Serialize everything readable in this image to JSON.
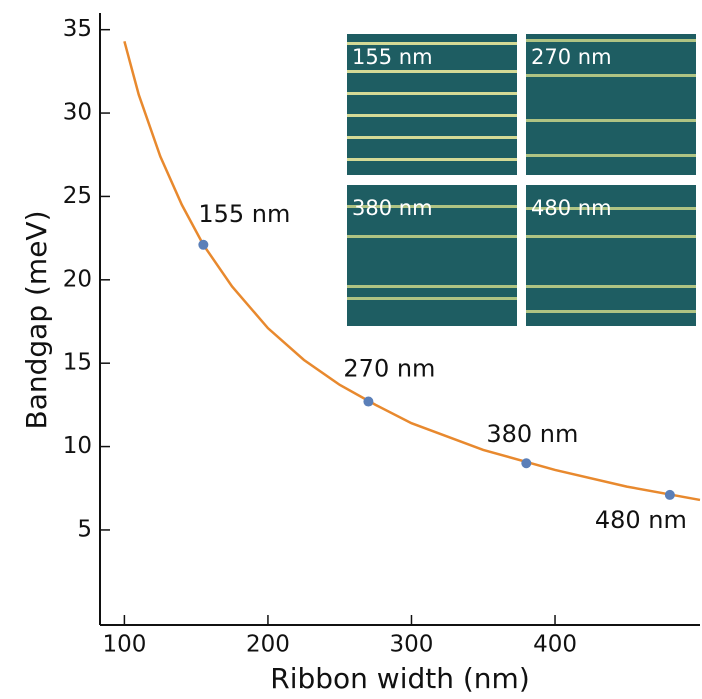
{
  "chart_data": {
    "type": "line",
    "x_label": "Ribbon width (nm)",
    "y_label": "Bandgap (meV)",
    "xlim": [
      83,
      501
    ],
    "xticks": [
      100,
      200,
      300,
      400
    ],
    "ylim": [
      -0.7,
      36
    ],
    "yticks": [
      5,
      10,
      15,
      20,
      25,
      30,
      35
    ],
    "series": [
      {
        "color": "#e8892e",
        "x": [
          100,
          110,
          125,
          140,
          155,
          175,
          200,
          225,
          250,
          275,
          300,
          350,
          400,
          450,
          501
        ],
        "values": [
          34.3,
          31.1,
          27.4,
          24.5,
          22.1,
          19.6,
          17.1,
          15.2,
          13.7,
          12.5,
          11.4,
          9.8,
          8.6,
          7.6,
          6.8
        ]
      },
      {
        "color": "#5b7fb8",
        "markers": true,
        "x": [
          155,
          270,
          380,
          480
        ],
        "values": [
          22.1,
          12.7,
          9.0,
          7.1
        ],
        "point_labels": [
          "155 nm",
          "270 nm",
          "380 nm",
          "480 nm"
        ]
      }
    ],
    "insets": [
      "155 nm",
      "270 nm",
      "380 nm",
      "480 nm"
    ]
  }
}
